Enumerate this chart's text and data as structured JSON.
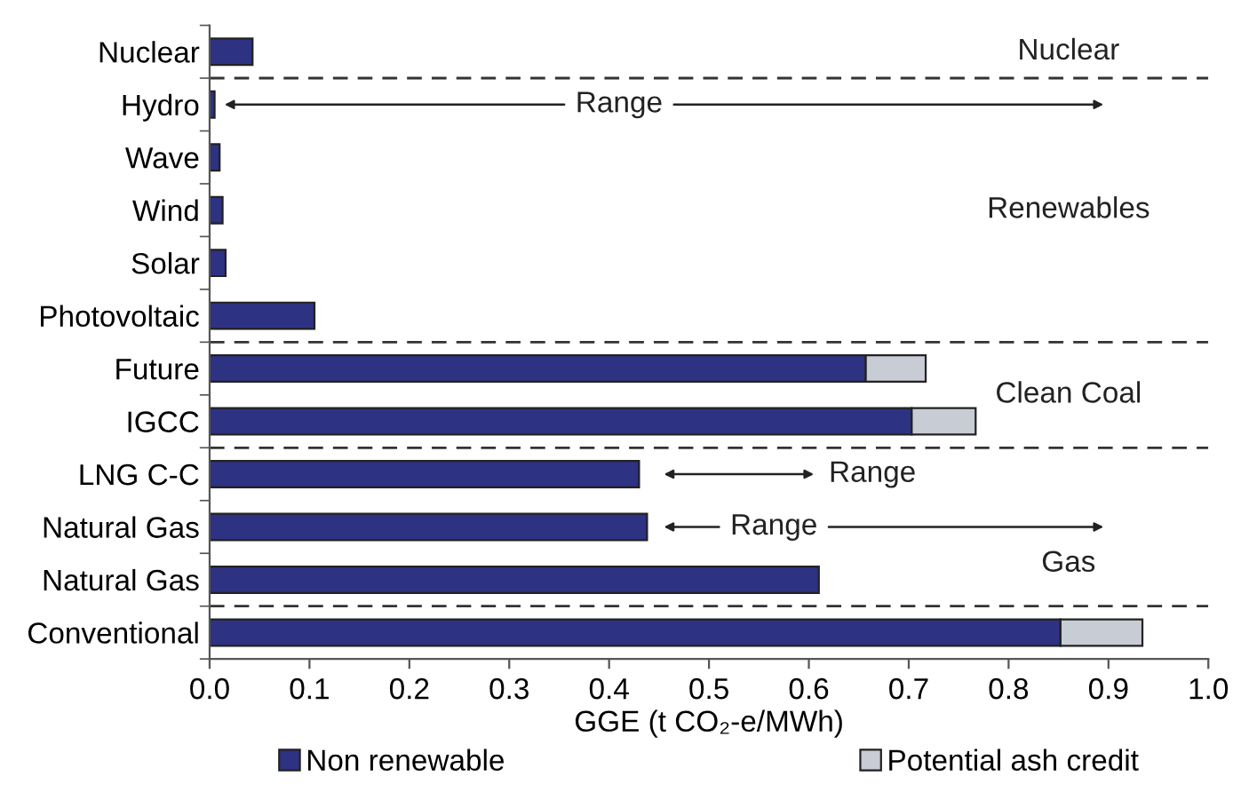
{
  "chart_data": {
    "type": "bar",
    "orientation": "horizontal",
    "stacked": true,
    "categories": [
      "Nuclear",
      "Hydro",
      "Wave",
      "Wind",
      "Solar",
      "Photovoltaic",
      "Future",
      "IGCC",
      "LNG C-C",
      "Natural Gas",
      "Natural Gas",
      "Conventional"
    ],
    "series": [
      {
        "name": "Non renewable",
        "color": "#2e3282",
        "values": [
          0.043,
          0.005,
          0.01,
          0.013,
          0.016,
          0.105,
          0.657,
          0.703,
          0.43,
          0.438,
          0.61,
          0.852
        ]
      },
      {
        "name": "Potential ash credit",
        "color": "#c8ccd4",
        "values": [
          null,
          null,
          null,
          null,
          null,
          null,
          0.06,
          0.064,
          null,
          null,
          null,
          0.082
        ]
      }
    ],
    "xlabel": "GGE (t CO₂-e/MWh)",
    "xlim": [
      0,
      1.0
    ],
    "xticks": [
      {
        "value": 0,
        "label": "0.0"
      },
      0.1,
      0.2,
      0.3,
      0.4,
      0.5,
      0.6,
      0.7,
      0.8,
      0.9,
      {
        "value": 1.0,
        "label": "1.0"
      }
    ],
    "annotations": [
      "Nuclear",
      "Renewables",
      "Clean Coal",
      "Gas",
      "Range",
      "Range",
      "Range"
    ],
    "legend": "bottom",
    "grid": false
  }
}
